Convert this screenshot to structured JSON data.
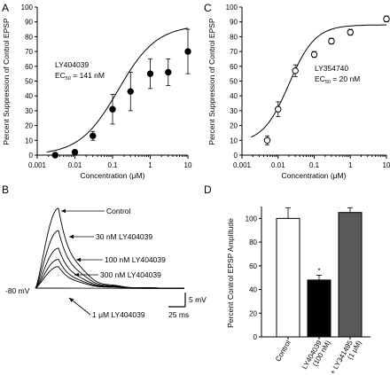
{
  "chart_data": [
    {
      "panel": "A",
      "type": "scatter",
      "xscale": "log",
      "xlim": [
        0.001,
        10
      ],
      "ylim": [
        0,
        100
      ],
      "xlabel": "Concentration (μM)",
      "ylabel": "Percent Suppression of Control EPSP",
      "xticks": [
        "0.001",
        "0.01",
        "0.1",
        "1",
        "10"
      ],
      "yticks": [
        "0",
        "10",
        "20",
        "30",
        "40",
        "50",
        "60",
        "70",
        "80",
        "90",
        "100"
      ],
      "marker": "filled",
      "annotation": [
        "LY404039",
        "EC",
        "50",
        " = 141 nM"
      ],
      "points": [
        {
          "x": 0.003,
          "y": 0,
          "err": 0
        },
        {
          "x": 0.01,
          "y": 2,
          "err": 1.5
        },
        {
          "x": 0.03,
          "y": 13,
          "err": 3
        },
        {
          "x": 0.1,
          "y": 31,
          "err": 10
        },
        {
          "x": 0.3,
          "y": 43,
          "err": 13
        },
        {
          "x": 1,
          "y": 55,
          "err": 10
        },
        {
          "x": 3,
          "y": 56,
          "err": 9
        },
        {
          "x": 10,
          "y": 70,
          "err": 15
        }
      ],
      "fit": {
        "bottom": 0,
        "top": 88,
        "ec50": 0.141,
        "hill": 0.85
      }
    },
    {
      "panel": "C",
      "type": "scatter",
      "xscale": "log",
      "xlim": [
        0.001,
        10
      ],
      "ylim": [
        0,
        100
      ],
      "xlabel": "Concentration (μM)",
      "ylabel": "Percent Suppression of Control EPSP",
      "xticks": [
        "0.001",
        "0.01",
        "0.1",
        "1",
        "10"
      ],
      "yticks": [
        "0",
        "10",
        "20",
        "30",
        "40",
        "50",
        "60",
        "70",
        "80",
        "90",
        "100"
      ],
      "marker": "open",
      "annotation": [
        "LY354740",
        "EC",
        "50",
        " = 20 nM"
      ],
      "points": [
        {
          "x": 0.005,
          "y": 10,
          "err": 3
        },
        {
          "x": 0.01,
          "y": 31,
          "err": 5
        },
        {
          "x": 0.03,
          "y": 57,
          "err": 4
        },
        {
          "x": 0.1,
          "y": 68,
          "err": 2
        },
        {
          "x": 0.3,
          "y": 77,
          "err": 2
        },
        {
          "x": 1,
          "y": 83,
          "err": 2
        },
        {
          "x": 10,
          "y": 92,
          "err": 2
        }
      ],
      "fit": {
        "bottom": 8,
        "top": 88,
        "ec50": 0.02,
        "hill": 1.2
      }
    },
    {
      "panel": "D",
      "type": "bar",
      "ylim": [
        0,
        110
      ],
      "ylabel": "Percent Control EPSP Amplitude",
      "yticks": [
        "0",
        "20",
        "40",
        "60",
        "80",
        "100"
      ],
      "categories": [
        [
          "Control"
        ],
        [
          "LY404039",
          "(100 nM)"
        ],
        [
          "+ LY341495",
          "(1 μM)"
        ]
      ],
      "values": [
        100,
        48,
        105
      ],
      "errors": [
        9,
        4,
        4
      ],
      "colors": [
        "#ffffff",
        "#000000",
        "#595959"
      ],
      "significance": [
        "",
        "*",
        ""
      ]
    }
  ],
  "traces_b": {
    "panel": "B",
    "baseline_label": "-80 mV",
    "trace_labels": [
      "Control",
      "30 nM LY404039",
      "100 nM LY404039",
      "300 nM LY404039",
      "1 μM LY404039"
    ],
    "amplitudes": [
      100,
      72,
      50,
      36,
      27
    ],
    "scale_v": "5 mV",
    "scale_t": "25 ms"
  }
}
